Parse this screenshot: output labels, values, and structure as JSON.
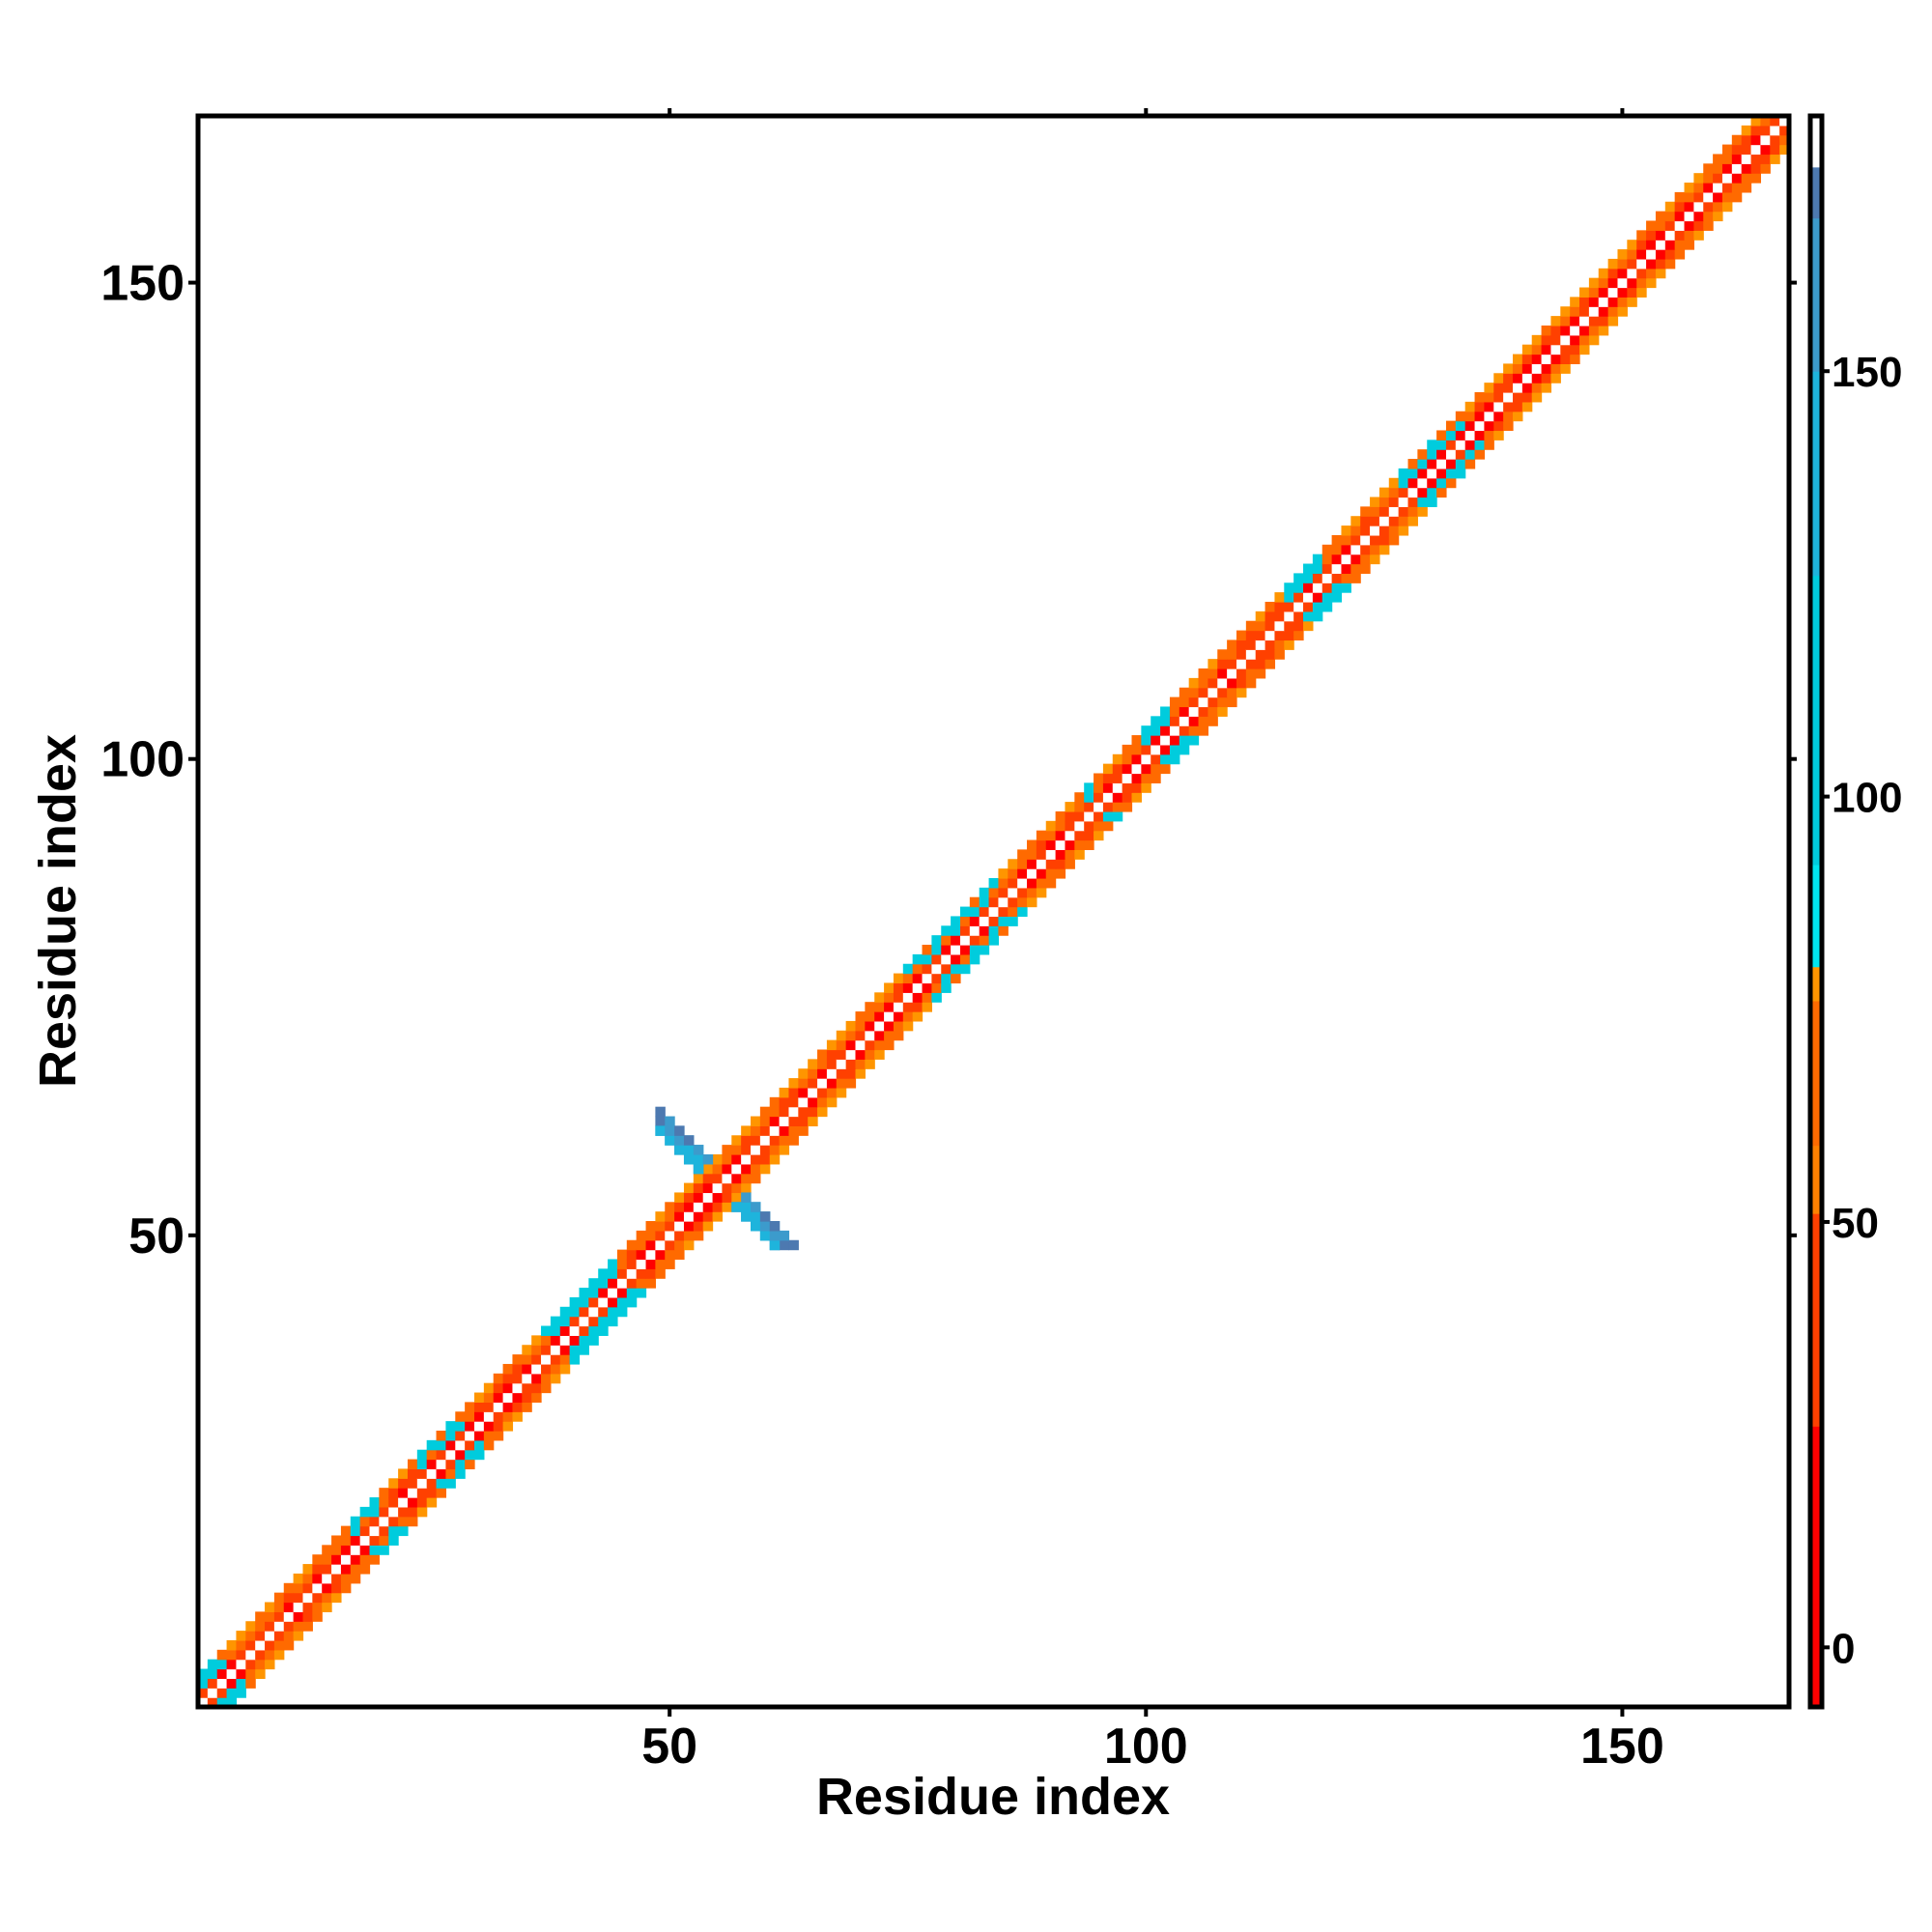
{
  "chart_data": {
    "type": "heatmap",
    "title": "",
    "xlabel": "Residue index",
    "ylabel": "Residue index",
    "xlim": [
      1,
      167
    ],
    "ylim": [
      1,
      167
    ],
    "x_ticks": [
      50,
      100,
      150
    ],
    "y_ticks": [
      50,
      100,
      150
    ],
    "grid": false,
    "colorbar": {
      "range": [
        -7,
        180
      ],
      "ticks": [
        0,
        50,
        100,
        150
      ],
      "bands": [
        {
          "from": -7,
          "to": 26,
          "color": "#ff0000"
        },
        {
          "from": 26,
          "to": 51,
          "color": "#ff4000"
        },
        {
          "from": 51,
          "to": 59,
          "color": "#ff8000"
        },
        {
          "from": 59,
          "to": 76,
          "color": "#ff6a00"
        },
        {
          "from": 76,
          "to": 80,
          "color": "#ff9500"
        },
        {
          "from": 80,
          "to": 92,
          "color": "#00e5ee"
        },
        {
          "from": 92,
          "to": 126,
          "color": "#00ccdd"
        },
        {
          "from": 126,
          "to": 150,
          "color": "#1eb4dc"
        },
        {
          "from": 150,
          "to": 168,
          "color": "#3c9bcc"
        },
        {
          "from": 168,
          "to": 174,
          "color": "#4d79b0"
        },
        {
          "from": 174,
          "to": 180,
          "color": "#ffffff"
        }
      ]
    },
    "n_residues": 167,
    "diagonal_value": 180,
    "band_offsets": [
      1,
      2,
      3
    ],
    "off_diagonal_feature": {
      "description_values": "anti-diagonal contacts between residues 49-61",
      "residue_range": [
        49,
        61
      ],
      "value_range": [
        130,
        172
      ]
    }
  }
}
